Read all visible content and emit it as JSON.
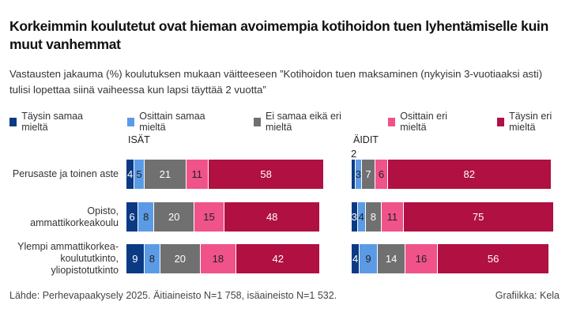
{
  "title": "Korkeimmin koulutetut ovat hieman avoimempia kotihoidon tuen lyhentämiselle kuin muut vanhemmat",
  "subtitle": "Vastausten jakauma (%) koulutuksen mukaan väitteeseen ”Kotihoidon tuen maksaminen (nykyisin 3-vuotiaaksi asti) tulisi lopettaa siinä vaiheessa kun lapsi täyttää 2 vuotta”",
  "source": "Lähde: Perhevapaakysely 2025. Äitiaineisto N=1 758, isäaineisto N=1 532.",
  "credit": "Grafiikka: Kela",
  "chart_data": {
    "type": "bar",
    "stacked": true,
    "orientation": "horizontal",
    "xlim": [
      0,
      100
    ],
    "legend_position": "top",
    "series_names": [
      "Täysin samaa mieltä",
      "Osittain samaa mieltä",
      "Ei samaa eikä eri mieltä",
      "Osittain eri mieltä",
      "Täysin eri mieltä"
    ],
    "colors": [
      "#0b3a84",
      "#5b9be6",
      "#707070",
      "#f0528a",
      "#b01042"
    ],
    "label_colors": [
      "#ffffff",
      "#222222",
      "#ffffff",
      "#222222",
      "#ffffff"
    ],
    "categories": [
      "Perusaste ja toinen aste",
      "Opisto, ammattikorkeakoulu",
      "Ylempi ammattikorkea-koulututkinto, yliopistotutkinto"
    ],
    "category_lines": [
      [
        "Perusaste ja toinen aste"
      ],
      [
        "Opisto,",
        "ammattikorkeakoulu"
      ],
      [
        "Ylempi ammattikorkea-",
        "koulututkinto,",
        "yliopistotutkinto"
      ]
    ],
    "panels": [
      {
        "title": "ISÄT",
        "values": [
          [
            4,
            5,
            21,
            11,
            58
          ],
          [
            6,
            8,
            20,
            15,
            48
          ],
          [
            9,
            8,
            20,
            18,
            42
          ]
        ]
      },
      {
        "title": "ÄIDIT",
        "values": [
          [
            2,
            3,
            7,
            6,
            82
          ],
          [
            3,
            4,
            8,
            11,
            75
          ],
          [
            4,
            9,
            14,
            16,
            56
          ]
        ]
      }
    ]
  }
}
